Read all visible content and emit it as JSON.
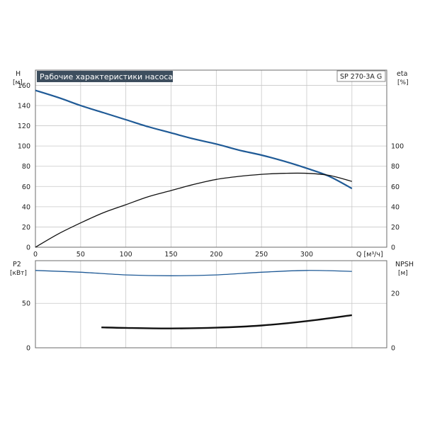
{
  "chart_data": [
    {
      "type": "line",
      "title": "Рабочие характеристики насоса",
      "model": "SP 270-3A G",
      "xlabel": "Q [м³/ч]",
      "ylabel_left": [
        "H",
        "[м]"
      ],
      "ylabel_right": [
        "eta",
        "[%]"
      ],
      "xlim": [
        0,
        390
      ],
      "ylim_left": [
        0,
        175
      ],
      "ylim_right": [
        0,
        175
      ],
      "x_ticks": [
        "0",
        "50",
        "100",
        "150",
        "200",
        "250",
        "300"
      ],
      "y_ticks_left": [
        "0",
        "20",
        "40",
        "60",
        "80",
        "100",
        "120",
        "140",
        "160"
      ],
      "y_ticks_right": [
        "0",
        "20",
        "40",
        "60",
        "80",
        "100"
      ],
      "grid": true,
      "series": [
        {
          "name": "H",
          "axis": "left",
          "color": "#1f5a96",
          "x": [
            0,
            25,
            50,
            75,
            100,
            125,
            150,
            175,
            200,
            225,
            250,
            275,
            300,
            325,
            350
          ],
          "y": [
            155,
            148,
            140,
            133,
            126,
            119,
            113,
            107,
            102,
            96,
            91,
            85,
            78,
            70,
            58
          ]
        },
        {
          "name": "eta",
          "axis": "right",
          "color": "#111111",
          "x": [
            0,
            25,
            50,
            75,
            100,
            125,
            150,
            175,
            200,
            225,
            250,
            275,
            300,
            325,
            350
          ],
          "y": [
            0,
            13,
            24,
            34,
            42,
            50,
            56,
            62,
            67,
            70,
            72,
            73,
            73,
            71,
            65
          ]
        }
      ]
    },
    {
      "type": "line",
      "xlim": [
        0,
        390
      ],
      "ylabel_left": [
        "P2",
        "[кВт]"
      ],
      "ylabel_right": [
        "NPSH",
        "[м]"
      ],
      "ylim_left": [
        0,
        98
      ],
      "ylim_right": [
        0,
        32
      ],
      "y_ticks_left": [
        "0",
        "50"
      ],
      "y_ticks_right": [
        "0",
        "20"
      ],
      "grid": true,
      "series": [
        {
          "name": "P2",
          "axis": "left",
          "color": "#1f5a96",
          "x": [
            0,
            50,
            100,
            150,
            200,
            250,
            300,
            350
          ],
          "y": [
            87,
            85,
            82,
            81,
            82,
            85,
            87,
            86
          ]
        },
        {
          "name": "NPSH",
          "axis": "right",
          "color": "#111111",
          "x": [
            73,
            100,
            150,
            200,
            250,
            300,
            350
          ],
          "y": [
            7.5,
            7.3,
            7.1,
            7.4,
            8.2,
            9.8,
            12
          ]
        }
      ]
    }
  ]
}
